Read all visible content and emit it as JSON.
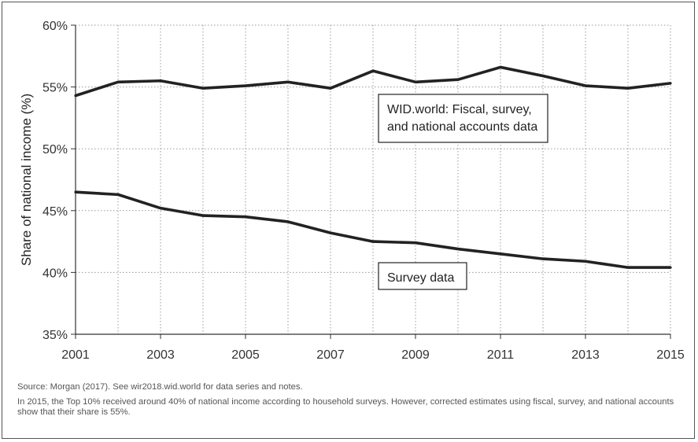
{
  "chart_data": {
    "type": "line",
    "x": [
      2001,
      2002,
      2003,
      2004,
      2005,
      2006,
      2007,
      2008,
      2009,
      2010,
      2011,
      2012,
      2013,
      2014,
      2015
    ],
    "series": [
      {
        "name": "WID.world: Fiscal, survey, and national accounts data",
        "label_lines": [
          "WID.world: Fiscal, survey,",
          "and national accounts data"
        ],
        "values": [
          54.3,
          55.4,
          55.5,
          54.9,
          55.1,
          55.4,
          54.9,
          56.3,
          55.4,
          55.6,
          56.6,
          55.9,
          55.1,
          54.9,
          55.3
        ]
      },
      {
        "name": "Survey data",
        "label_lines": [
          "Survey data"
        ],
        "values": [
          46.5,
          46.3,
          45.2,
          44.6,
          44.5,
          44.1,
          43.2,
          42.5,
          42.4,
          41.9,
          41.5,
          41.1,
          40.9,
          40.4,
          40.4
        ]
      }
    ],
    "ylabel": "Share of national income (%)",
    "xlabel": "",
    "ylim": [
      35,
      60
    ],
    "xlim": [
      2001,
      2015
    ],
    "yticks": [
      "35%",
      "40%",
      "45%",
      "50%",
      "55%",
      "60%"
    ],
    "xticks": [
      "2001",
      "2003",
      "2005",
      "2007",
      "2009",
      "2011",
      "2013",
      "2015"
    ],
    "grid": true,
    "line_color": "#222222"
  },
  "notes": {
    "source": "Source: Morgan (2017). See wir2018.wid.world for data series and notes.",
    "caption": "In 2015, the Top 10% received around 40% of national income according to household surveys. However, corrected estimates using fiscal, survey, and national accounts show that their share is 55%."
  }
}
